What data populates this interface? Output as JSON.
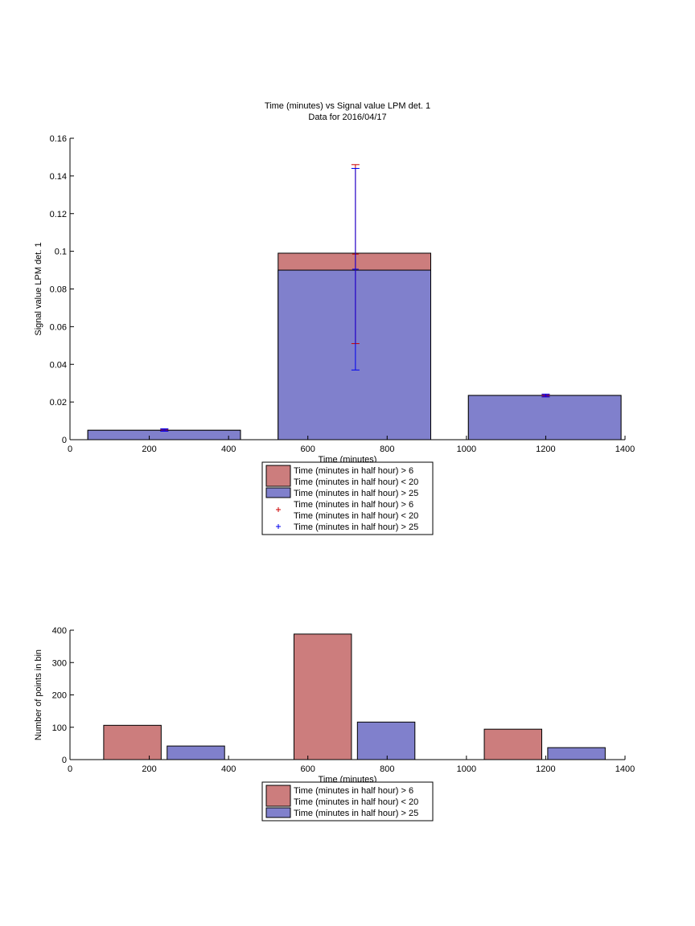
{
  "colors": {
    "red_bar": "#cc7d7d",
    "blue_bar": "#8080cc",
    "red_err": "#cc0000",
    "blue_err": "#0000ee"
  },
  "chart_data": [
    {
      "type": "bar",
      "title": "Time (minutes) vs Signal value LPM det. 1",
      "subtitle": "Data for 2016/04/17",
      "xlabel": "Time (minutes)",
      "ylabel": "Signal value LPM det. 1",
      "xlim": [
        0,
        1400
      ],
      "ylim": [
        0,
        0.16
      ],
      "xticks": [
        "0",
        "200",
        "400",
        "600",
        "800",
        "1000",
        "1200",
        "1400"
      ],
      "yticks": [
        "0",
        "0.02",
        "0.04",
        "0.06",
        "0.08",
        "0.1",
        "0.12",
        "0.14",
        "0.16"
      ],
      "bars": [
        {
          "series": "red",
          "x0": 45,
          "x1": 430,
          "value": 0.005
        },
        {
          "series": "blue",
          "x0": 45,
          "x1": 430,
          "value": 0.005
        },
        {
          "series": "red",
          "x0": 525,
          "x1": 910,
          "value": 0.099
        },
        {
          "series": "blue",
          "x0": 525,
          "x1": 910,
          "value": 0.09
        },
        {
          "series": "red",
          "x0": 1005,
          "x1": 1390,
          "value": 0.0235
        },
        {
          "series": "blue",
          "x0": 1005,
          "x1": 1390,
          "value": 0.0235
        }
      ],
      "errorbars": [
        {
          "series": "red",
          "x": 720,
          "low": 0.051,
          "high": 0.146
        },
        {
          "series": "blue",
          "x": 720,
          "low": 0.037,
          "high": 0.144
        },
        {
          "series": "red",
          "x": 238,
          "low": 0.0045,
          "high": 0.0055
        },
        {
          "series": "blue",
          "x": 238,
          "low": 0.0045,
          "high": 0.0058
        },
        {
          "series": "red",
          "x": 1200,
          "low": 0.0228,
          "high": 0.0238
        },
        {
          "series": "blue",
          "x": 1200,
          "low": 0.0227,
          "high": 0.0242
        }
      ],
      "legend_position": "below",
      "legend": [
        {
          "kind": "patch",
          "series": "red",
          "lines": [
            "Time (minutes in half hour) > 6",
            "Time (minutes in half hour) < 20"
          ]
        },
        {
          "kind": "patch",
          "series": "blue",
          "lines": [
            "Time (minutes in half hour) > 25"
          ]
        },
        {
          "kind": "marker",
          "series": "red",
          "lines": [
            "Time (minutes in half hour) > 6",
            "Time (minutes in half hour) < 20"
          ]
        },
        {
          "kind": "marker",
          "series": "blue",
          "lines": [
            "Time (minutes in half hour) > 25"
          ]
        }
      ]
    },
    {
      "type": "bar",
      "xlabel": "Time (minutes)",
      "ylabel": "Number of points in bin",
      "xlim": [
        0,
        1400
      ],
      "ylim": [
        0,
        400
      ],
      "xticks": [
        "0",
        "200",
        "400",
        "600",
        "800",
        "1000",
        "1200",
        "1400"
      ],
      "yticks": [
        "0",
        "100",
        "200",
        "300",
        "400"
      ],
      "bars": [
        {
          "series": "red",
          "x0": 85,
          "x1": 230,
          "value": 106
        },
        {
          "series": "blue",
          "x0": 245,
          "x1": 390,
          "value": 42
        },
        {
          "series": "red",
          "x0": 565,
          "x1": 710,
          "value": 388
        },
        {
          "series": "blue",
          "x0": 725,
          "x1": 870,
          "value": 116
        },
        {
          "series": "red",
          "x0": 1045,
          "x1": 1190,
          "value": 94
        },
        {
          "series": "blue",
          "x0": 1205,
          "x1": 1350,
          "value": 37
        }
      ],
      "legend_position": "below",
      "legend": [
        {
          "kind": "patch",
          "series": "red",
          "lines": [
            "Time (minutes in half hour) > 6",
            "Time (minutes in half hour) < 20"
          ]
        },
        {
          "kind": "patch",
          "series": "blue",
          "lines": [
            "Time (minutes in half hour) > 25"
          ]
        }
      ]
    }
  ]
}
